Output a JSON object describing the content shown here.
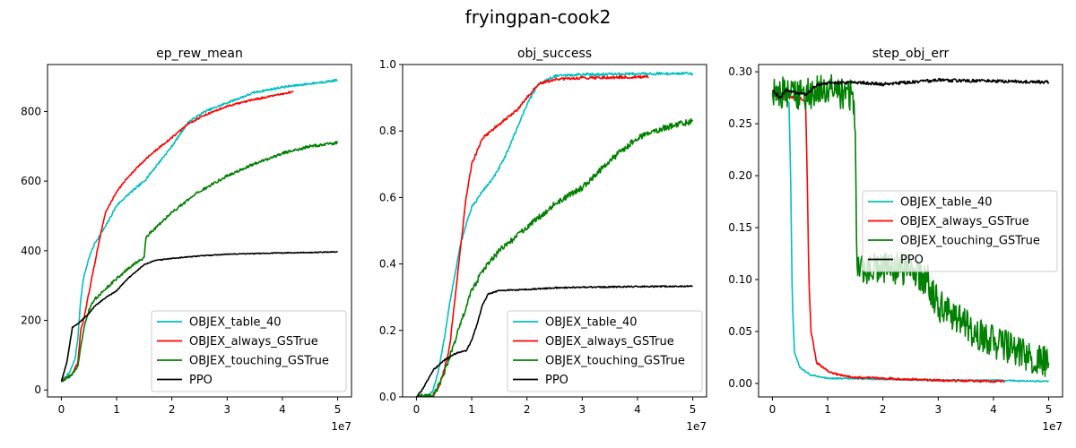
{
  "figure": {
    "suptitle": "fryingpan-cook2"
  },
  "colors": {
    "OBJEX_table_40": "#00bfbf",
    "OBJEX_always_GSTrue": "#ff0000",
    "OBJEX_touching_GSTrue": "#008000",
    "PPO": "#000000"
  },
  "chart_data": [
    {
      "type": "line",
      "title": "ep_rew_mean",
      "xlabel": "",
      "ylabel": "",
      "x_offset_label": "1e7",
      "xlim": [
        -0.25,
        5.25
      ],
      "ylim": [
        -20,
        935
      ],
      "xticks": [
        0,
        1,
        2,
        3,
        4,
        5
      ],
      "xtick_labels": [
        "0",
        "1",
        "2",
        "3",
        "4",
        "5"
      ],
      "yticks": [
        0,
        200,
        400,
        600,
        800
      ],
      "ytick_labels": [
        "0",
        "200",
        "400",
        "600",
        "800"
      ],
      "legend": "lower-right",
      "series": [
        {
          "name": "OBJEX_table_40",
          "noise": 3,
          "points": [
            [
              0,
              25
            ],
            [
              0.15,
              50
            ],
            [
              0.25,
              90
            ],
            [
              0.3,
              150
            ],
            [
              0.35,
              260
            ],
            [
              0.4,
              320
            ],
            [
              0.5,
              380
            ],
            [
              0.6,
              420
            ],
            [
              0.7,
              445
            ],
            [
              0.8,
              470
            ],
            [
              1.0,
              530
            ],
            [
              1.2,
              560
            ],
            [
              1.5,
              600
            ],
            [
              2.0,
              700
            ],
            [
              2.3,
              770
            ],
            [
              2.6,
              800
            ],
            [
              3.0,
              825
            ],
            [
              3.5,
              855
            ],
            [
              4.0,
              870
            ],
            [
              4.5,
              880
            ],
            [
              5.0,
              890
            ]
          ]
        },
        {
          "name": "OBJEX_always_GSTrue",
          "noise": 2.5,
          "points": [
            [
              0,
              25
            ],
            [
              0.2,
              45
            ],
            [
              0.3,
              80
            ],
            [
              0.35,
              170
            ],
            [
              0.4,
              200
            ],
            [
              0.5,
              280
            ],
            [
              0.6,
              360
            ],
            [
              0.7,
              440
            ],
            [
              0.8,
              510
            ],
            [
              1.0,
              570
            ],
            [
              1.2,
              610
            ],
            [
              1.5,
              660
            ],
            [
              1.8,
              700
            ],
            [
              2.0,
              725
            ],
            [
              2.3,
              765
            ],
            [
              2.6,
              790
            ],
            [
              3.0,
              815
            ],
            [
              3.5,
              835
            ],
            [
              4.0,
              850
            ],
            [
              4.2,
              858
            ]
          ]
        },
        {
          "name": "OBJEX_touching_GSTrue",
          "noise": 4,
          "points": [
            [
              0,
              25
            ],
            [
              0.2,
              45
            ],
            [
              0.3,
              70
            ],
            [
              0.4,
              170
            ],
            [
              0.5,
              230
            ],
            [
              0.6,
              260
            ],
            [
              0.8,
              290
            ],
            [
              1.0,
              320
            ],
            [
              1.3,
              360
            ],
            [
              1.5,
              380
            ],
            [
              1.53,
              440
            ],
            [
              1.8,
              480
            ],
            [
              2.0,
              510
            ],
            [
              2.5,
              570
            ],
            [
              3.0,
              615
            ],
            [
              3.5,
              650
            ],
            [
              4.0,
              680
            ],
            [
              4.5,
              700
            ],
            [
              5.0,
              710
            ]
          ]
        },
        {
          "name": "PPO",
          "noise": 1.2,
          "points": [
            [
              0,
              25
            ],
            [
              0.1,
              80
            ],
            [
              0.2,
              180
            ],
            [
              0.3,
              190
            ],
            [
              0.5,
              220
            ],
            [
              0.6,
              240
            ],
            [
              0.8,
              265
            ],
            [
              1.0,
              285
            ],
            [
              1.2,
              320
            ],
            [
              1.5,
              360
            ],
            [
              1.7,
              372
            ],
            [
              2.0,
              378
            ],
            [
              2.5,
              385
            ],
            [
              3.0,
              390
            ],
            [
              3.5,
              392
            ],
            [
              4.0,
              394
            ],
            [
              4.5,
              395
            ],
            [
              5.0,
              397
            ]
          ]
        }
      ]
    },
    {
      "type": "line",
      "title": "obj_success",
      "xlabel": "",
      "ylabel": "",
      "x_offset_label": "1e7",
      "xlim": [
        -0.25,
        5.25
      ],
      "ylim": [
        0.0,
        1.0
      ],
      "xticks": [
        0,
        1,
        2,
        3,
        4,
        5
      ],
      "xtick_labels": [
        "0",
        "1",
        "2",
        "3",
        "4",
        "5"
      ],
      "yticks": [
        0.0,
        0.2,
        0.4,
        0.6,
        0.8,
        1.0
      ],
      "ytick_labels": [
        "0.0",
        "0.2",
        "0.4",
        "0.6",
        "0.8",
        "1.0"
      ],
      "legend": "lower-right",
      "series": [
        {
          "name": "OBJEX_table_40",
          "noise": 0.004,
          "points": [
            [
              0,
              0
            ],
            [
              0.2,
              0
            ],
            [
              0.3,
              0.02
            ],
            [
              0.4,
              0.08
            ],
            [
              0.5,
              0.17
            ],
            [
              0.6,
              0.28
            ],
            [
              0.7,
              0.37
            ],
            [
              0.8,
              0.46
            ],
            [
              0.9,
              0.52
            ],
            [
              1.0,
              0.57
            ],
            [
              1.2,
              0.62
            ],
            [
              1.4,
              0.66
            ],
            [
              1.6,
              0.72
            ],
            [
              1.8,
              0.8
            ],
            [
              2.0,
              0.88
            ],
            [
              2.2,
              0.94
            ],
            [
              2.5,
              0.965
            ],
            [
              3.0,
              0.97
            ],
            [
              4.0,
              0.972
            ],
            [
              5.0,
              0.973
            ]
          ]
        },
        {
          "name": "OBJEX_always_GSTrue",
          "noise": 0.004,
          "points": [
            [
              0,
              0
            ],
            [
              0.3,
              0
            ],
            [
              0.4,
              0.03
            ],
            [
              0.5,
              0.08
            ],
            [
              0.6,
              0.15
            ],
            [
              0.7,
              0.3
            ],
            [
              0.8,
              0.45
            ],
            [
              0.9,
              0.6
            ],
            [
              1.0,
              0.7
            ],
            [
              1.2,
              0.78
            ],
            [
              1.5,
              0.82
            ],
            [
              1.8,
              0.86
            ],
            [
              2.0,
              0.9
            ],
            [
              2.2,
              0.94
            ],
            [
              2.5,
              0.955
            ],
            [
              3.0,
              0.96
            ],
            [
              3.5,
              0.961
            ],
            [
              4.0,
              0.962
            ],
            [
              4.2,
              0.962
            ]
          ]
        },
        {
          "name": "OBJEX_touching_GSTrue",
          "noise": 0.009,
          "points": [
            [
              0,
              0
            ],
            [
              0.3,
              0
            ],
            [
              0.45,
              0.05
            ],
            [
              0.6,
              0.12
            ],
            [
              0.8,
              0.22
            ],
            [
              1.0,
              0.32
            ],
            [
              1.2,
              0.38
            ],
            [
              1.5,
              0.44
            ],
            [
              2.0,
              0.51
            ],
            [
              2.5,
              0.58
            ],
            [
              3.0,
              0.63
            ],
            [
              3.5,
              0.71
            ],
            [
              4.0,
              0.78
            ],
            [
              4.5,
              0.81
            ],
            [
              5.0,
              0.83
            ]
          ]
        },
        {
          "name": "PPO",
          "noise": 0.002,
          "points": [
            [
              0,
              0
            ],
            [
              0.1,
              0.02
            ],
            [
              0.2,
              0.05
            ],
            [
              0.3,
              0.08
            ],
            [
              0.5,
              0.11
            ],
            [
              0.7,
              0.13
            ],
            [
              0.9,
              0.14
            ],
            [
              1.0,
              0.17
            ],
            [
              1.1,
              0.22
            ],
            [
              1.2,
              0.28
            ],
            [
              1.3,
              0.31
            ],
            [
              1.5,
              0.32
            ],
            [
              2.0,
              0.323
            ],
            [
              2.5,
              0.328
            ],
            [
              3.0,
              0.33
            ],
            [
              4.0,
              0.332
            ],
            [
              5.0,
              0.333
            ]
          ]
        }
      ]
    },
    {
      "type": "line",
      "title": "step_obj_err",
      "xlabel": "",
      "ylabel": "",
      "x_offset_label": "1e7",
      "xlim": [
        -0.25,
        5.25
      ],
      "ylim": [
        -0.013,
        0.307
      ],
      "xticks": [
        0,
        1,
        2,
        3,
        4,
        5
      ],
      "xtick_labels": [
        "0",
        "1",
        "2",
        "3",
        "4",
        "5"
      ],
      "yticks": [
        0.0,
        0.05,
        0.1,
        0.15,
        0.2,
        0.25,
        0.3
      ],
      "ytick_labels": [
        "0.00",
        "0.05",
        "0.10",
        "0.15",
        "0.20",
        "0.25",
        "0.30"
      ],
      "legend": "center-right",
      "series": [
        {
          "name": "OBJEX_table_40",
          "noise": 0.0006,
          "points": [
            [
              0,
              0.28
            ],
            [
              0.2,
              0.278
            ],
            [
              0.3,
              0.27
            ],
            [
              0.33,
              0.2
            ],
            [
              0.36,
              0.08
            ],
            [
              0.4,
              0.03
            ],
            [
              0.5,
              0.015
            ],
            [
              0.7,
              0.008
            ],
            [
              1.0,
              0.005
            ],
            [
              2.0,
              0.004
            ],
            [
              3.0,
              0.003
            ],
            [
              4.0,
              0.003
            ],
            [
              5.0,
              0.002
            ]
          ]
        },
        {
          "name": "OBJEX_always_GSTrue",
          "noise": 0.001,
          "points": [
            [
              0,
              0.282
            ],
            [
              0.3,
              0.276
            ],
            [
              0.5,
              0.275
            ],
            [
              0.6,
              0.27
            ],
            [
              0.63,
              0.2
            ],
            [
              0.66,
              0.1
            ],
            [
              0.7,
              0.05
            ],
            [
              0.8,
              0.02
            ],
            [
              1.0,
              0.012
            ],
            [
              1.2,
              0.008
            ],
            [
              1.5,
              0.006
            ],
            [
              2.0,
              0.005
            ],
            [
              3.0,
              0.003
            ],
            [
              4.0,
              0.002
            ],
            [
              4.2,
              0.002
            ]
          ]
        },
        {
          "name": "OBJEX_touching_GSTrue",
          "noise": 0.016,
          "points": [
            [
              0,
              0.28
            ],
            [
              0.5,
              0.278
            ],
            [
              1.0,
              0.282
            ],
            [
              1.45,
              0.278
            ],
            [
              1.5,
              0.25
            ],
            [
              1.53,
              0.11
            ],
            [
              1.8,
              0.11
            ],
            [
              2.0,
              0.11
            ],
            [
              2.5,
              0.11
            ],
            [
              2.8,
              0.1
            ],
            [
              3.0,
              0.075
            ],
            [
              3.5,
              0.055
            ],
            [
              4.0,
              0.04
            ],
            [
              4.5,
              0.03
            ],
            [
              5.0,
              0.02
            ]
          ]
        },
        {
          "name": "PPO",
          "noise": 0.0015,
          "points": [
            [
              0,
              0.282
            ],
            [
              0.15,
              0.275
            ],
            [
              0.25,
              0.283
            ],
            [
              0.4,
              0.28
            ],
            [
              0.6,
              0.278
            ],
            [
              0.8,
              0.287
            ],
            [
              1.0,
              0.289
            ],
            [
              1.5,
              0.29
            ],
            [
              2.0,
              0.288
            ],
            [
              2.5,
              0.29
            ],
            [
              3.0,
              0.292
            ],
            [
              4.0,
              0.291
            ],
            [
              5.0,
              0.29
            ]
          ]
        }
      ]
    }
  ]
}
